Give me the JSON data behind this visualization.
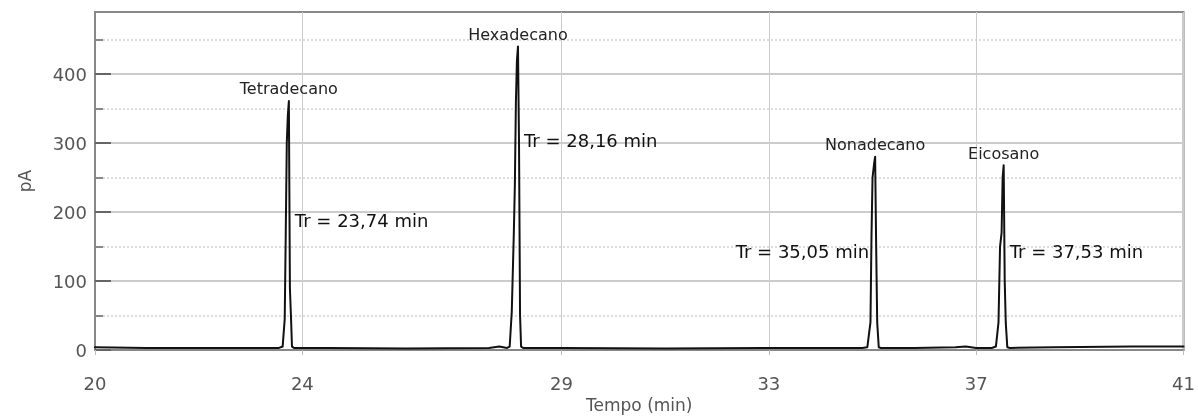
{
  "chart_data": {
    "type": "line",
    "xlabel": "Tempo (min)",
    "ylabel": "pA",
    "xlim": [
      20,
      41
    ],
    "xticks": [
      20,
      24,
      29,
      33,
      37,
      41
    ],
    "ylim": [
      0,
      490
    ],
    "yticks": [
      0,
      100,
      200,
      300,
      400
    ],
    "grid": true,
    "marker": "none",
    "line_style": "solid",
    "series": [
      {
        "color": "#111111",
        "x": [
          20,
          21,
          22,
          23,
          23.55,
          23.62,
          23.66,
          23.68,
          23.7,
          23.72,
          23.74,
          23.76,
          23.78,
          23.8,
          23.84,
          24.5,
          26,
          27.6,
          27.8,
          27.95,
          28.0,
          28.04,
          28.08,
          28.1,
          28.12,
          28.14,
          28.16,
          28.18,
          28.2,
          28.22,
          28.26,
          29,
          31,
          33,
          34.8,
          34.9,
          34.96,
          34.98,
          35.0,
          35.03,
          35.05,
          35.07,
          35.09,
          35.12,
          35.16,
          35.8,
          36.6,
          36.8,
          37.0,
          37.3,
          37.38,
          37.43,
          37.46,
          37.49,
          37.51,
          37.53,
          37.55,
          37.57,
          37.6,
          37.65,
          38.5,
          40,
          41
        ],
        "values": [
          4,
          3,
          3,
          3,
          3,
          5,
          45,
          170,
          300,
          340,
          361,
          90,
          50,
          5,
          3,
          3,
          2,
          3,
          5,
          3,
          5,
          55,
          170,
          240,
          360,
          420,
          440,
          300,
          50,
          5,
          3,
          3,
          2,
          3,
          3,
          4,
          40,
          165,
          250,
          270,
          280,
          150,
          40,
          4,
          3,
          3,
          4,
          5,
          3,
          3,
          5,
          40,
          150,
          170,
          250,
          268,
          100,
          40,
          4,
          3,
          4,
          5,
          5
        ]
      }
    ],
    "annotations": [
      {
        "text": "Tetradecano",
        "x": 23.74,
        "y": 361
      },
      {
        "text": "Tr = 23,74 min",
        "x": 23.74,
        "y": 188
      },
      {
        "text": "Hexadecano",
        "x": 28.16,
        "y": 440
      },
      {
        "text": "Tr = 28,16 min",
        "x": 28.16,
        "y": 303
      },
      {
        "text": "Nonadecano",
        "x": 35.05,
        "y": 280
      },
      {
        "text": "Tr = 35,05 min",
        "x": 35.05,
        "y": 143
      },
      {
        "text": "Eicosano",
        "x": 37.53,
        "y": 268
      },
      {
        "text": "Tr = 37,53 min",
        "x": 37.53,
        "y": 143
      }
    ]
  }
}
